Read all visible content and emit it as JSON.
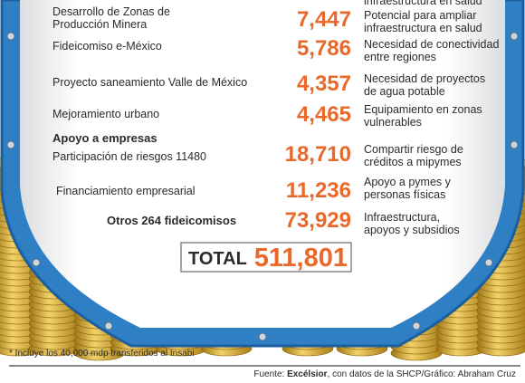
{
  "top_cut_text": "infraestructura en salud",
  "rows": [
    {
      "label": "Desarrollo de Zonas de Producción Minera",
      "amount": "7,447",
      "purpose": "Potencial para ampliar infraestructura en salud"
    },
    {
      "label": "Fideicomiso e-México",
      "amount": "5,786",
      "purpose": "Necesidad de conectividad entre regiones"
    },
    {
      "label": "Proyecto saneamiento Valle de México",
      "amount": "4,357",
      "purpose": "Necesidad de proyectos de agua potable"
    },
    {
      "label": "Mejoramiento urbano",
      "amount": "4,465",
      "purpose": "Equipamiento en zonas vulnerables"
    }
  ],
  "section": "Apoyo a empresas",
  "section_rows": [
    {
      "label": "Participación de riesgos 11480",
      "amount": "18,710",
      "purpose": "Compartir riesgo de créditos a mipymes"
    },
    {
      "label": "Financiamiento empresarial",
      "amount": "11,236",
      "purpose": "Apoyo a pymes y personas físicas"
    }
  ],
  "others": {
    "label": "Otros 264 fideicomisos",
    "amount": "73,929",
    "purpose": "Infraestructura, apoyos y subsidios"
  },
  "total": {
    "label": "TOTAL",
    "amount": "511,801"
  },
  "footnote": "* Incluye los 40,000 mdp transferidos al Insabi",
  "source": {
    "prefix": "Fuente: ",
    "outlet": "Excélsior",
    "rest": ", con datos de la SHCP/Gráfico: Abraham Cruz"
  }
}
